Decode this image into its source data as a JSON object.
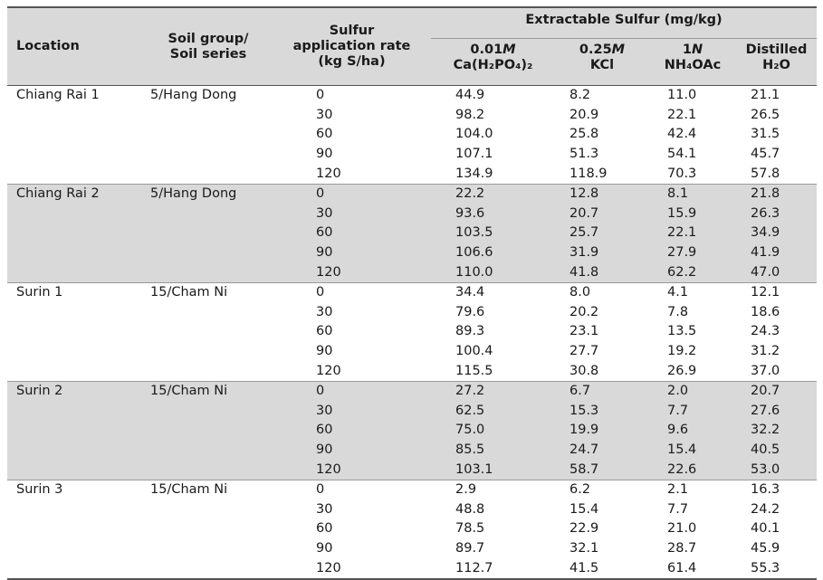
{
  "header": {
    "location": "Location",
    "soil_line1": "Soil group/",
    "soil_line2": "Soil series",
    "rate_line1": "Sulfur",
    "rate_line2": "application rate",
    "rate_line3": "(kg S/ha)",
    "extractable": "Extractable Sulfur (mg/kg)",
    "extractants": [
      {
        "conc": "0.01",
        "unit": "M",
        "name": "Ca(H₂PO₄)₂"
      },
      {
        "conc": "0.25",
        "unit": "M",
        "name": "KCl"
      },
      {
        "conc": "1",
        "unit": "N",
        "name": "NH₄OAc"
      },
      {
        "conc": "Distilled",
        "unit": "",
        "name": "H₂O"
      }
    ]
  },
  "groups": [
    {
      "location": "Chiang Rai 1",
      "soil": "5/Hang Dong",
      "rows": [
        {
          "rate": "0",
          "v": [
            "44.9",
            "8.2",
            "11.0",
            "21.1"
          ]
        },
        {
          "rate": "30",
          "v": [
            "98.2",
            "20.9",
            "22.1",
            "26.5"
          ]
        },
        {
          "rate": "60",
          "v": [
            "104.0",
            "25.8",
            "42.4",
            "31.5"
          ]
        },
        {
          "rate": "90",
          "v": [
            "107.1",
            "51.3",
            "54.1",
            "45.7"
          ]
        },
        {
          "rate": "120",
          "v": [
            "134.9",
            "118.9",
            "70.3",
            "57.8"
          ]
        }
      ]
    },
    {
      "location": "Chiang Rai 2",
      "soil": "5/Hang Dong",
      "rows": [
        {
          "rate": "0",
          "v": [
            "22.2",
            "12.8",
            "8.1",
            "21.8"
          ]
        },
        {
          "rate": "30",
          "v": [
            "93.6",
            "20.7",
            "15.9",
            "26.3"
          ]
        },
        {
          "rate": "60",
          "v": [
            "103.5",
            "25.7",
            "22.1",
            "34.9"
          ]
        },
        {
          "rate": "90",
          "v": [
            "106.6",
            "31.9",
            "27.9",
            "41.9"
          ]
        },
        {
          "rate": "120",
          "v": [
            "110.0",
            "41.8",
            "62.2",
            "47.0"
          ]
        }
      ]
    },
    {
      "location": "Surin 1",
      "soil": "15/Cham Ni",
      "rows": [
        {
          "rate": "0",
          "v": [
            "34.4",
            "8.0",
            "4.1",
            "12.1"
          ]
        },
        {
          "rate": "30",
          "v": [
            "79.6",
            "20.2",
            "7.8",
            "18.6"
          ]
        },
        {
          "rate": "60",
          "v": [
            "89.3",
            "23.1",
            "13.5",
            "24.3"
          ]
        },
        {
          "rate": "90",
          "v": [
            "100.4",
            "27.7",
            "19.2",
            "31.2"
          ]
        },
        {
          "rate": "120",
          "v": [
            "115.5",
            "30.8",
            "26.9",
            "37.0"
          ]
        }
      ]
    },
    {
      "location": "Surin 2",
      "soil": "15/Cham Ni",
      "rows": [
        {
          "rate": "0",
          "v": [
            "27.2",
            "6.7",
            "2.0",
            "20.7"
          ]
        },
        {
          "rate": "30",
          "v": [
            "62.5",
            "15.3",
            "7.7",
            "27.6"
          ]
        },
        {
          "rate": "60",
          "v": [
            "75.0",
            "19.9",
            "9.6",
            "32.2"
          ]
        },
        {
          "rate": "90",
          "v": [
            "85.5",
            "24.7",
            "15.4",
            "40.5"
          ]
        },
        {
          "rate": "120",
          "v": [
            "103.1",
            "58.7",
            "22.6",
            "53.0"
          ]
        }
      ]
    },
    {
      "location": "Surin 3",
      "soil": "15/Cham Ni",
      "rows": [
        {
          "rate": "0",
          "v": [
            "2.9",
            "6.2",
            "2.1",
            "16.3"
          ]
        },
        {
          "rate": "30",
          "v": [
            "48.8",
            "15.4",
            "7.7",
            "24.2"
          ]
        },
        {
          "rate": "60",
          "v": [
            "78.5",
            "22.9",
            "21.0",
            "40.1"
          ]
        },
        {
          "rate": "90",
          "v": [
            "89.7",
            "32.1",
            "28.7",
            "45.9"
          ]
        },
        {
          "rate": "120",
          "v": [
            "112.7",
            "41.5",
            "61.4",
            "55.3"
          ]
        }
      ]
    }
  ]
}
